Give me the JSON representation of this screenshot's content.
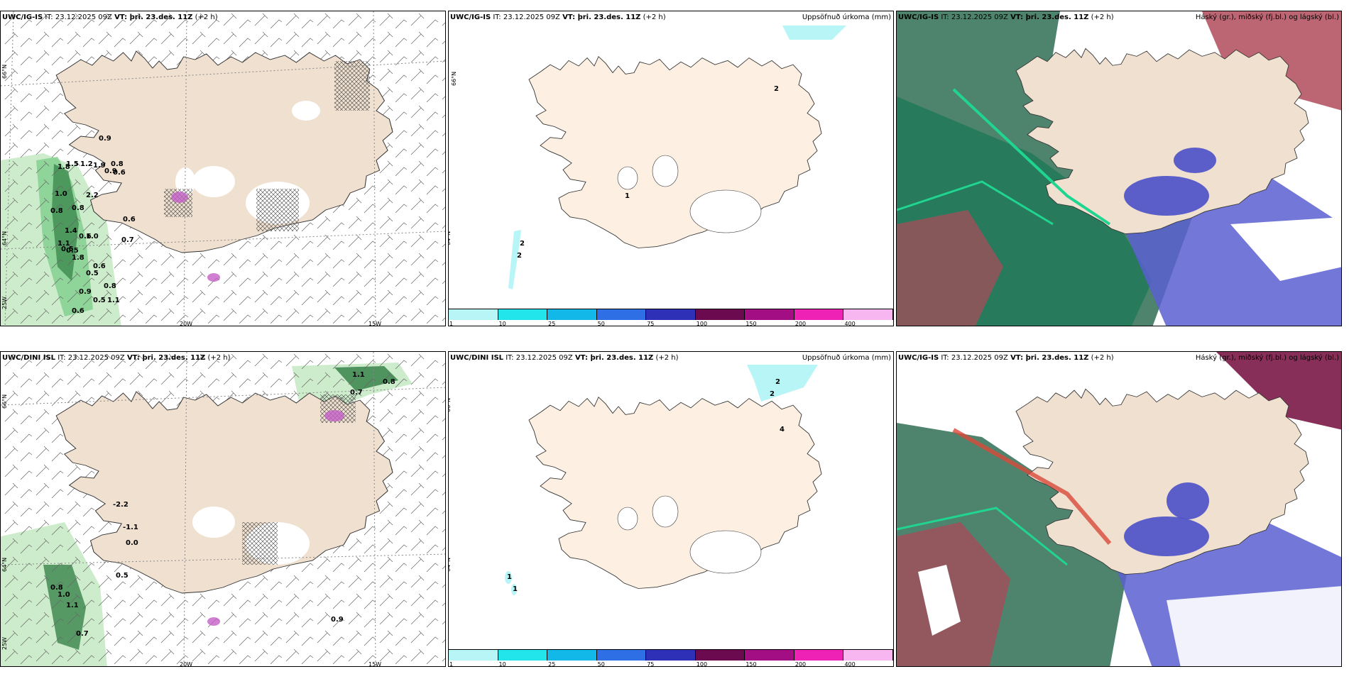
{
  "panels": {
    "p1": {
      "model": "UWC/IG-IS",
      "it_prefix": "IT: ",
      "it": "23.12.2025 09Z",
      "vt_prefix": "VT: ",
      "vt": "þri. 23.des. 11Z",
      "lead": "(+2 h)",
      "right_title": ""
    },
    "p2": {
      "model": "UWC/IG-IS",
      "it_prefix": "IT: ",
      "it": "23.12.2025 09Z",
      "vt_prefix": "VT: ",
      "vt": "þri. 23.des. 11Z",
      "lead": "(+2 h)",
      "right_title": "Uppsöfnuð úrkoma (mm)"
    },
    "p3": {
      "model": "UWC/IG-IS",
      "it_prefix": "IT: ",
      "it": "23.12.2025 09Z",
      "vt_prefix": "VT: ",
      "vt": "þri. 23.des. 11Z",
      "lead": "(+2 h)",
      "right_title": "Háský (gr.), miðský (fj.bl.) og lágský (bl.)"
    },
    "p4": {
      "model": "UWC/DINI ISL",
      "it_prefix": "IT: ",
      "it": "23.12.2025 09Z",
      "vt_prefix": "VT: ",
      "vt": "þri. 23.des. 11Z",
      "lead": "(+2 h)",
      "right_title": ""
    },
    "p5": {
      "model": "UWC/DINI ISL",
      "it_prefix": "IT: ",
      "it": "23.12.2025 09Z",
      "vt_prefix": "VT: ",
      "vt": "þri. 23.des. 11Z",
      "lead": "(+2 h)",
      "right_title": "Uppsöfnuð úrkoma (mm)"
    },
    "p6": {
      "model": "UWC/IG-IS",
      "it_prefix": "IT: ",
      "it": "23.12.2025 09Z",
      "vt_prefix": "VT: ",
      "vt": "þri. 23.des. 11Z",
      "lead": "(+2 h)",
      "right_title": "Háský (gr.), miðský (fj.bl.) og lágský (bl.)"
    }
  },
  "graticule": {
    "lat_66": "66°N",
    "lat_64": "64°N",
    "lon_20": "20W",
    "lon_15": "15W",
    "lon_25": "25W"
  },
  "colorbar": {
    "ticks": [
      "1",
      "10",
      "25",
      "50",
      "75",
      "100",
      "150",
      "200",
      "400"
    ],
    "colors": [
      "#b8f5f7",
      "#22e5ec",
      "#12b8e8",
      "#2f6fe6",
      "#2e30b8",
      "#6b0a4e",
      "#a40e85",
      "#ee22b5",
      "#f7b6ef"
    ]
  },
  "p1_labels": [
    "0.9",
    "1.8",
    "1.5",
    "1.2",
    "1.9",
    "0.8",
    "0.9",
    "0.6",
    "1.0",
    "0.8",
    "0.8",
    "2.2",
    "0.6",
    "1.4",
    "0.6",
    "1.1",
    "0.5",
    "1.0",
    "0.7",
    "1.8",
    "0.5",
    "0.6",
    "0.5",
    "0.8",
    "0.9",
    "0.5",
    "1.1",
    "0.6"
  ],
  "p4_labels": [
    "1.1",
    "0.8",
    "0.7",
    "-2.2",
    "-1.1",
    "0.0",
    "0.5",
    "0.8",
    "1.0",
    "1.1",
    "0.7",
    "0.9"
  ],
  "p2_labels": [
    "2",
    "2",
    "2",
    "1"
  ],
  "p5_labels": [
    "2",
    "2",
    "4",
    "1",
    "1"
  ]
}
